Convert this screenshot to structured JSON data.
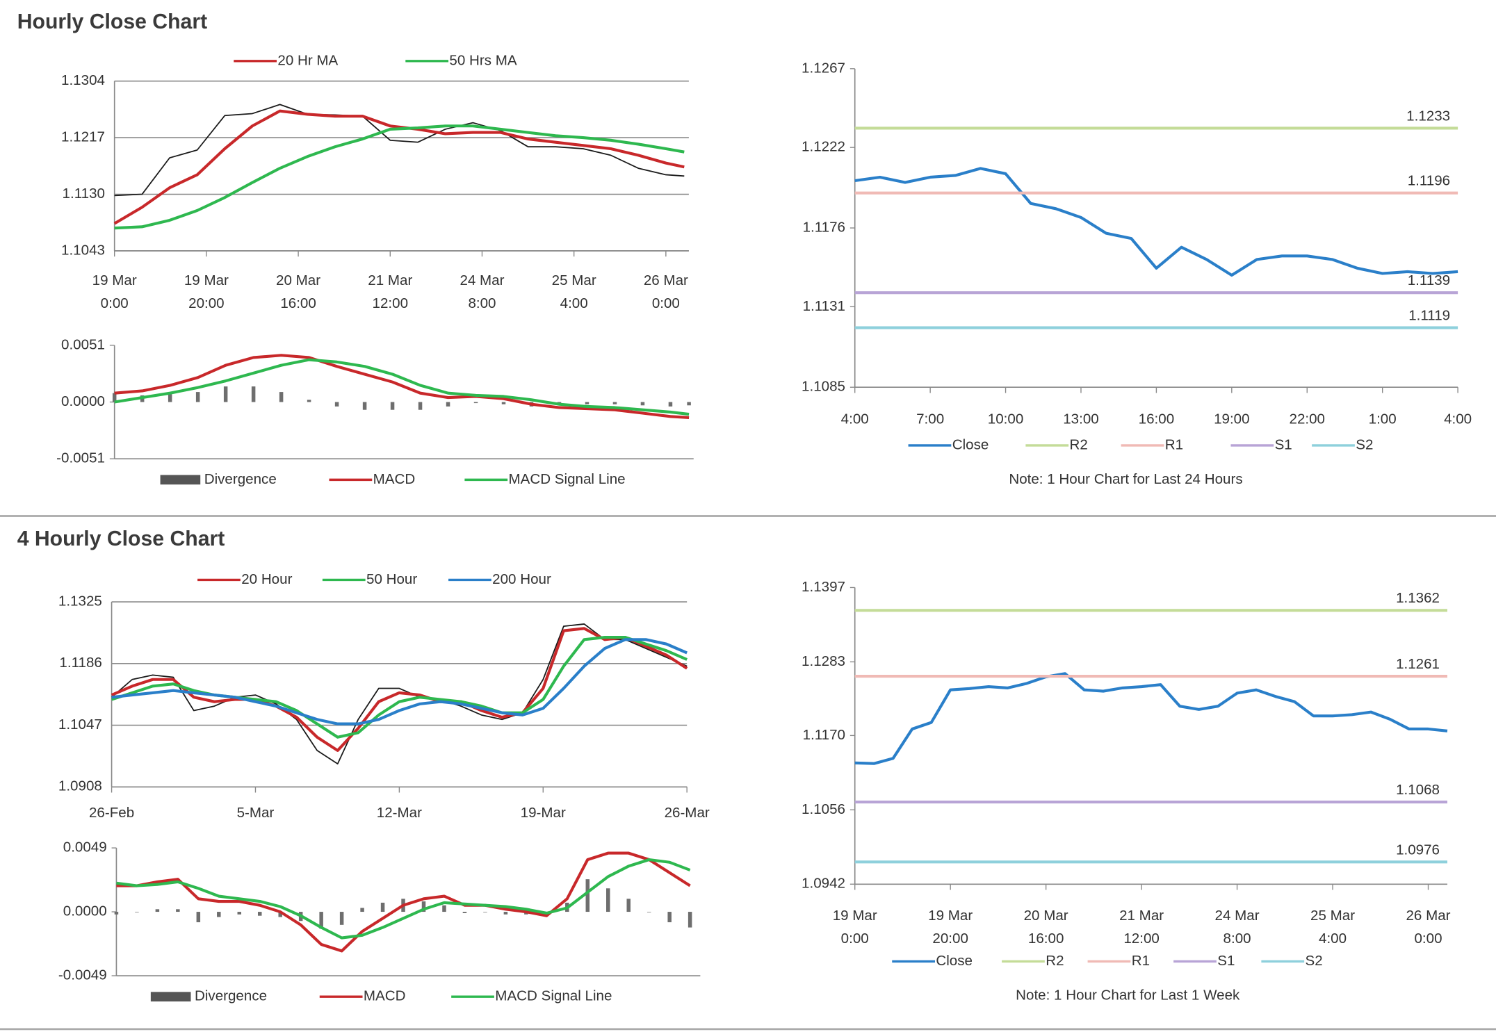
{
  "headings": [
    "Hourly Close Chart",
    "4 Hourly Close Chart"
  ],
  "chart_data": [
    {
      "type": "line",
      "grid": true,
      "xlim": [
        0,
        125
      ],
      "ylim": [
        1.1043,
        1.1304
      ],
      "yticks": [
        {
          "value": 1.1043,
          "label": "1.1043"
        },
        {
          "value": 1.113,
          "label": "1.1130"
        },
        {
          "value": 1.1217,
          "label": "1.1217"
        },
        {
          "value": 1.1304,
          "label": "1.1304"
        }
      ],
      "xticks": [
        {
          "value": 0,
          "label": "19 Mar\n0:00"
        },
        {
          "value": 20,
          "label": "19 Mar\n20:00"
        },
        {
          "value": 40,
          "label": "20 Mar\n16:00"
        },
        {
          "value": 60,
          "label": "21 Mar\n12:00"
        },
        {
          "value": 80,
          "label": "24 Mar\n8:00"
        },
        {
          "value": 100,
          "label": "25 Mar\n4:00"
        },
        {
          "value": 120,
          "label": "26 Mar\n0:00"
        }
      ],
      "x": [
        0,
        6,
        12,
        18,
        24,
        30,
        36,
        42,
        48,
        54,
        60,
        66,
        72,
        78,
        84,
        90,
        96,
        102,
        108,
        114,
        120,
        124
      ],
      "series": [
        {
          "color": "#1a1a1a",
          "style": "line",
          "values": [
            1.1128,
            1.113,
            1.1186,
            1.1198,
            1.1251,
            1.1254,
            1.1268,
            1.1253,
            1.1252,
            1.125,
            1.1213,
            1.121,
            1.123,
            1.124,
            1.1228,
            1.1203,
            1.1203,
            1.12,
            1.119,
            1.117,
            1.116,
            1.1158
          ]
        },
        {
          "name": "20 Hr MA",
          "color": "#c8282a",
          "style": "line",
          "values": [
            1.1085,
            1.111,
            1.114,
            1.116,
            1.12,
            1.1235,
            1.1258,
            1.1253,
            1.125,
            1.125,
            1.1235,
            1.123,
            1.1223,
            1.1225,
            1.1225,
            1.1215,
            1.121,
            1.1205,
            1.12,
            1.119,
            1.1178,
            1.1172
          ]
        },
        {
          "name": "50 Hrs MA",
          "color": "#2eb84f",
          "style": "line",
          "values": [
            1.1078,
            1.108,
            1.109,
            1.1105,
            1.1125,
            1.1148,
            1.117,
            1.1188,
            1.1203,
            1.1215,
            1.123,
            1.1232,
            1.1235,
            1.1235,
            1.123,
            1.1225,
            1.122,
            1.1217,
            1.1213,
            1.1207,
            1.12,
            1.1195
          ]
        }
      ]
    },
    {
      "type": "combo",
      "grid": false,
      "xlim": [
        0,
        125
      ],
      "ylim": [
        -0.0051,
        0.0051
      ],
      "yticks": [
        {
          "value": -0.0051,
          "label": "-0.0051"
        },
        {
          "value": 0,
          "label": "0.0000"
        },
        {
          "value": 0.0051,
          "label": "0.0051"
        }
      ],
      "x": [
        0,
        6,
        12,
        18,
        24,
        30,
        36,
        42,
        48,
        54,
        60,
        66,
        72,
        78,
        84,
        90,
        96,
        102,
        108,
        114,
        120,
        124
      ],
      "series": [
        {
          "name": "Divergence",
          "color": "#6e6e6e",
          "style": "bar",
          "values": [
            0.0008,
            0.0006,
            0.0007,
            0.0009,
            0.0014,
            0.0014,
            0.0009,
            0.0002,
            -0.0004,
            -0.0007,
            -0.0007,
            -0.0007,
            -0.0004,
            -0.0001,
            -0.0002,
            -0.0004,
            -0.0003,
            -0.0002,
            -0.0002,
            -0.0003,
            -0.0004,
            -0.0003
          ]
        },
        {
          "name": "MACD",
          "color": "#c8282a",
          "style": "line",
          "values": [
            0.0008,
            0.001,
            0.0015,
            0.0022,
            0.0033,
            0.004,
            0.0042,
            0.004,
            0.0032,
            0.0025,
            0.0018,
            0.0008,
            0.0004,
            0.0005,
            0.0003,
            -0.0002,
            -0.0005,
            -0.0006,
            -0.0007,
            -0.001,
            -0.0013,
            -0.0014
          ]
        },
        {
          "name": "MACD  Signal Line",
          "color": "#2eb84f",
          "style": "line",
          "values": [
            0.0,
            0.0004,
            0.0008,
            0.0013,
            0.0019,
            0.0026,
            0.0033,
            0.0038,
            0.0036,
            0.0032,
            0.0025,
            0.0015,
            0.0008,
            0.0006,
            0.0005,
            0.0002,
            -0.0002,
            -0.0004,
            -0.0005,
            -0.0007,
            -0.0009,
            -0.0011
          ]
        }
      ]
    },
    {
      "type": "line",
      "grid": false,
      "note": "Note: 1 Hour Chart for Last 24 Hours",
      "xlim": [
        0,
        24
      ],
      "ylim": [
        1.1085,
        1.1267
      ],
      "yticks": [
        {
          "value": 1.1085,
          "label": "1.1085"
        },
        {
          "value": 1.1131,
          "label": "1.1131"
        },
        {
          "value": 1.1176,
          "label": "1.1176"
        },
        {
          "value": 1.1222,
          "label": "1.1222"
        },
        {
          "value": 1.1267,
          "label": "1.1267"
        }
      ],
      "xticks": [
        {
          "value": 0,
          "label": "4:00"
        },
        {
          "value": 3,
          "label": "7:00"
        },
        {
          "value": 6,
          "label": "10:00"
        },
        {
          "value": 9,
          "label": "13:00"
        },
        {
          "value": 12,
          "label": "16:00"
        },
        {
          "value": 15,
          "label": "19:00"
        },
        {
          "value": 18,
          "label": "22:00"
        },
        {
          "value": 21,
          "label": "1:00"
        },
        {
          "value": 24,
          "label": "4:00"
        }
      ],
      "x": [
        0,
        1,
        2,
        3,
        4,
        5,
        6,
        7,
        8,
        9,
        10,
        11,
        12,
        13,
        14,
        15,
        16,
        17,
        18,
        19,
        20,
        21,
        22,
        23,
        24
      ],
      "series": [
        {
          "name": "Close",
          "color": "#2a7fc9",
          "style": "line",
          "values": [
            1.1203,
            1.1205,
            1.1202,
            1.1205,
            1.1206,
            1.121,
            1.1207,
            1.119,
            1.1187,
            1.1182,
            1.1173,
            1.117,
            1.1153,
            1.1165,
            1.1158,
            1.1149,
            1.1158,
            1.116,
            1.116,
            1.1158,
            1.1153,
            1.115,
            1.1151,
            1.115,
            1.1151
          ]
        }
      ],
      "levels": [
        {
          "name": "R2",
          "color": "#c4dc98",
          "value": 1.1233
        },
        {
          "name": "R1",
          "color": "#f0bab5",
          "value": 1.1196
        },
        {
          "name": "S1",
          "color": "#b8a4d6",
          "value": 1.1139
        },
        {
          "name": "S2",
          "color": "#8ed0dc",
          "value": 1.1119
        }
      ]
    },
    {
      "type": "line",
      "grid": true,
      "xlim": [
        0,
        28
      ],
      "ylim": [
        1.0908,
        1.1325
      ],
      "yticks": [
        {
          "value": 1.0908,
          "label": "1.0908"
        },
        {
          "value": 1.1047,
          "label": "1.1047"
        },
        {
          "value": 1.1186,
          "label": "1.1186"
        },
        {
          "value": 1.1325,
          "label": "1.1325"
        }
      ],
      "xticks": [
        {
          "value": 0,
          "label": "26-Feb"
        },
        {
          "value": 7,
          "label": "5-Mar"
        },
        {
          "value": 14,
          "label": "12-Mar"
        },
        {
          "value": 21,
          "label": "19-Mar"
        },
        {
          "value": 28,
          "label": "26-Mar"
        }
      ],
      "x": [
        0,
        1,
        2,
        3,
        4,
        5,
        6,
        7,
        8,
        9,
        10,
        11,
        12,
        13,
        14,
        15,
        16,
        17,
        18,
        19,
        20,
        21,
        22,
        23,
        24,
        25,
        26,
        27,
        28
      ],
      "series": [
        {
          "color": "#1a1a1a",
          "style": "line",
          "values": [
            1.111,
            1.115,
            1.116,
            1.1155,
            1.108,
            1.109,
            1.111,
            1.1115,
            1.1095,
            1.106,
            1.099,
            1.096,
            1.106,
            1.113,
            1.113,
            1.111,
            1.1105,
            1.109,
            1.107,
            1.106,
            1.1075,
            1.115,
            1.127,
            1.1275,
            1.124,
            1.124,
            1.122,
            1.12,
            1.118
          ]
        },
        {
          "name": "20 Hour",
          "color": "#c8282a",
          "style": "line",
          "values": [
            1.1115,
            1.1135,
            1.115,
            1.115,
            1.111,
            1.11,
            1.1105,
            1.1105,
            1.109,
            1.1065,
            1.102,
            1.099,
            1.104,
            1.11,
            1.112,
            1.1115,
            1.11,
            1.11,
            1.108,
            1.1065,
            1.1075,
            1.113,
            1.126,
            1.1265,
            1.124,
            1.1245,
            1.1225,
            1.1205,
            1.1175
          ]
        },
        {
          "name": "50 Hour",
          "color": "#2eb84f",
          "style": "line",
          "values": [
            1.1105,
            1.112,
            1.1135,
            1.114,
            1.1125,
            1.1115,
            1.111,
            1.1105,
            1.11,
            1.108,
            1.105,
            1.102,
            1.103,
            1.107,
            1.11,
            1.111,
            1.1105,
            1.11,
            1.109,
            1.1075,
            1.1075,
            1.1105,
            1.118,
            1.124,
            1.1245,
            1.1245,
            1.123,
            1.1215,
            1.1195
          ]
        },
        {
          "name": "200 Hour",
          "color": "#2a7fc9",
          "style": "line",
          "values": [
            1.111,
            1.1115,
            1.112,
            1.1125,
            1.112,
            1.1115,
            1.111,
            1.11,
            1.109,
            1.1075,
            1.106,
            1.105,
            1.105,
            1.106,
            1.108,
            1.1095,
            1.11,
            1.1095,
            1.1085,
            1.1075,
            1.107,
            1.1085,
            1.113,
            1.118,
            1.122,
            1.124,
            1.124,
            1.123,
            1.121
          ]
        }
      ]
    },
    {
      "type": "combo",
      "grid": false,
      "xlim": [
        0,
        28.5
      ],
      "ylim": [
        -0.0049,
        0.0049
      ],
      "yticks": [
        {
          "value": -0.0049,
          "label": "-0.0049"
        },
        {
          "value": 0,
          "label": "0.0000"
        },
        {
          "value": 0.0049,
          "label": "0.0049"
        }
      ],
      "x": [
        0,
        1,
        2,
        3,
        4,
        5,
        6,
        7,
        8,
        9,
        10,
        11,
        12,
        13,
        14,
        15,
        16,
        17,
        18,
        19,
        20,
        21,
        22,
        23,
        24,
        25,
        26,
        27,
        28
      ],
      "series": [
        {
          "name": "Divergence",
          "color": "#6e6e6e",
          "style": "bar",
          "values": [
            -0.0002,
            0,
            0.0002,
            0.0002,
            -0.0008,
            -0.0004,
            -0.0002,
            -0.0003,
            -0.0004,
            -0.0007,
            -0.0013,
            -0.001,
            0.0003,
            0.0007,
            0.001,
            0.0008,
            0.0005,
            -0.0001,
            0,
            -0.0002,
            -0.0002,
            -0.0002,
            0.0007,
            0.0025,
            0.0018,
            0.001,
            0,
            -0.0008,
            -0.0012
          ]
        },
        {
          "name": "MACD",
          "color": "#c8282a",
          "style": "line",
          "values": [
            0.002,
            0.002,
            0.0023,
            0.0025,
            0.001,
            0.0008,
            0.0008,
            0.0005,
            0.0,
            -0.001,
            -0.0025,
            -0.003,
            -0.0015,
            -0.0005,
            0.0005,
            0.001,
            0.0012,
            0.0005,
            0.0005,
            0.0002,
            0.0,
            -0.0003,
            0.001,
            0.004,
            0.0045,
            0.0045,
            0.004,
            0.003,
            0.002
          ]
        },
        {
          "name": "MACD  Signal Line",
          "color": "#2eb84f",
          "style": "line",
          "values": [
            0.0022,
            0.002,
            0.0021,
            0.0023,
            0.0018,
            0.0012,
            0.001,
            0.0008,
            0.0004,
            -0.0003,
            -0.0012,
            -0.002,
            -0.0018,
            -0.0012,
            -0.0005,
            0.0002,
            0.0007,
            0.0006,
            0.0005,
            0.0004,
            0.0002,
            -0.0001,
            0.0003,
            0.0015,
            0.0027,
            0.0035,
            0.004,
            0.0038,
            0.0032
          ]
        }
      ]
    },
    {
      "type": "line",
      "grid": false,
      "note": "Note: 1 Hour Chart for  Last 1 Week",
      "xlim": [
        0,
        124
      ],
      "ylim": [
        1.0942,
        1.1397
      ],
      "yticks": [
        {
          "value": 1.0942,
          "label": "1.0942"
        },
        {
          "value": 1.1056,
          "label": "1.1056"
        },
        {
          "value": 1.117,
          "label": "1.1170"
        },
        {
          "value": 1.1283,
          "label": "1.1283"
        },
        {
          "value": 1.1397,
          "label": "1.1397"
        }
      ],
      "xticks": [
        {
          "value": 0,
          "label": "19 Mar\n0:00"
        },
        {
          "value": 20,
          "label": "19 Mar\n20:00"
        },
        {
          "value": 40,
          "label": "20 Mar\n16:00"
        },
        {
          "value": 60,
          "label": "21 Mar\n12:00"
        },
        {
          "value": 80,
          "label": "24 Mar\n8:00"
        },
        {
          "value": 100,
          "label": "25 Mar\n4:00"
        },
        {
          "value": 120,
          "label": "26 Mar\n0:00"
        }
      ],
      "x": [
        0,
        4,
        8,
        12,
        16,
        20,
        24,
        28,
        32,
        36,
        40,
        44,
        48,
        52,
        56,
        60,
        64,
        68,
        72,
        76,
        80,
        84,
        88,
        92,
        96,
        100,
        104,
        108,
        112,
        116,
        120,
        124
      ],
      "series": [
        {
          "name": "Close",
          "color": "#2a7fc9",
          "style": "line",
          "values": [
            1.1128,
            1.1127,
            1.1135,
            1.118,
            1.119,
            1.124,
            1.1242,
            1.1245,
            1.1243,
            1.125,
            1.126,
            1.1265,
            1.124,
            1.1238,
            1.1243,
            1.1245,
            1.1248,
            1.1215,
            1.121,
            1.1215,
            1.1235,
            1.124,
            1.123,
            1.1222,
            1.12,
            1.12,
            1.1202,
            1.1206,
            1.1195,
            1.118,
            1.118,
            1.1177
          ]
        }
      ],
      "levels": [
        {
          "name": "R2",
          "color": "#c4dc98",
          "value": 1.1362
        },
        {
          "name": "R1",
          "color": "#f0bab5",
          "value": 1.1261
        },
        {
          "name": "S1",
          "color": "#b8a4d6",
          "value": 1.1068
        },
        {
          "name": "S2",
          "color": "#8ed0dc",
          "value": 1.0976
        }
      ]
    }
  ]
}
